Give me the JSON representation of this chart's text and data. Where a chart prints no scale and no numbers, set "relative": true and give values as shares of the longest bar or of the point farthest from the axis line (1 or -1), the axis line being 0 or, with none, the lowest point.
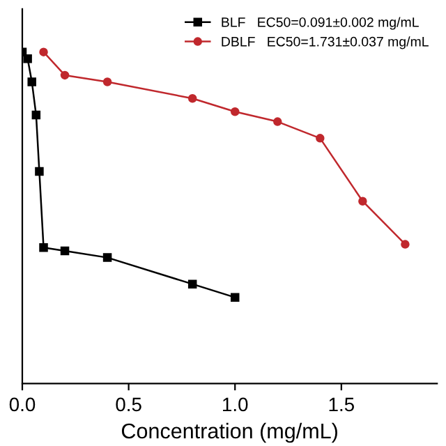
{
  "chart_data": {
    "type": "line",
    "xlabel": "Concentration (mg/mL)",
    "relative": true,
    "xlim": [
      0,
      1.95
    ],
    "xticks": [
      {
        "value": 0,
        "label": "0.0"
      },
      0.5,
      {
        "value": 1,
        "label": "1.0"
      },
      1.5
    ],
    "legend": "top right",
    "grid": false,
    "series": [
      {
        "name": "BLF   EC50=0.091±0.002 mg/mL",
        "color": "#000000",
        "marker": "square",
        "x": [
          0,
          0.025,
          0.045,
          0.065,
          0.08,
          0.1,
          0.2,
          0.4,
          0.8,
          1.0
        ],
        "values": [
          1,
          0.98,
          0.91,
          0.81,
          0.64,
          0.41,
          0.4,
          0.38,
          0.3,
          0.26
        ]
      },
      {
        "name": "DBLF   EC50=1.731±0.037 mg/mL",
        "color": "#c0282d",
        "marker": "circle",
        "x": [
          0.1,
          0.2,
          0.4,
          0.8,
          1.0,
          1.2,
          1.4,
          1.6,
          1.8
        ],
        "values": [
          1.0,
          0.93,
          0.91,
          0.86,
          0.82,
          0.79,
          0.74,
          0.55,
          0.42
        ]
      }
    ]
  }
}
